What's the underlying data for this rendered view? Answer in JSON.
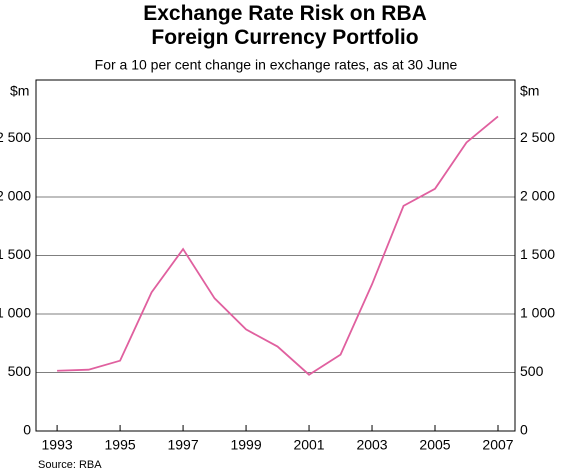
{
  "chart_data": {
    "type": "line",
    "title": "Exchange Rate Risk on RBA Foreign Currency Portfolio",
    "subtitle": "For a 10 per cent change in exchange rates, as at 30 June",
    "y_label": "$m",
    "y2_label": "$m",
    "source": "Source: RBA",
    "x": [
      1993,
      1994,
      1995,
      1996,
      1997,
      1998,
      1999,
      2000,
      2001,
      2002,
      2003,
      2004,
      2005,
      2006,
      2007
    ],
    "series": [
      {
        "name": "Exchange rate risk",
        "color": "#e0609f",
        "values": [
          515,
          524,
          601,
          1185,
          1555,
          1134,
          868,
          722,
          481,
          653,
          1254,
          1924,
          2070,
          2466,
          2689
        ]
      }
    ],
    "xlim": [
      1992.33,
      2007.54
    ],
    "xticks": [
      1993,
      1995,
      1997,
      1999,
      2001,
      2003,
      2005,
      2007
    ],
    "ylim": [
      0,
      3000
    ],
    "yticks": [
      0,
      500,
      {
        "value": 1000,
        "label": "1 000"
      },
      {
        "value": 1500,
        "label": "1 500"
      },
      {
        "value": 2000,
        "label": "2 000"
      },
      {
        "value": 2500,
        "label": "2 500"
      }
    ],
    "y2lim": [
      0,
      3000
    ],
    "y2ticks": [
      0,
      500,
      {
        "value": 1000,
        "label": "1 000"
      },
      {
        "value": 1500,
        "label": "1 500"
      },
      {
        "value": 2000,
        "label": "2 000"
      },
      {
        "value": 2500,
        "label": "2 500"
      }
    ],
    "grid": true
  }
}
